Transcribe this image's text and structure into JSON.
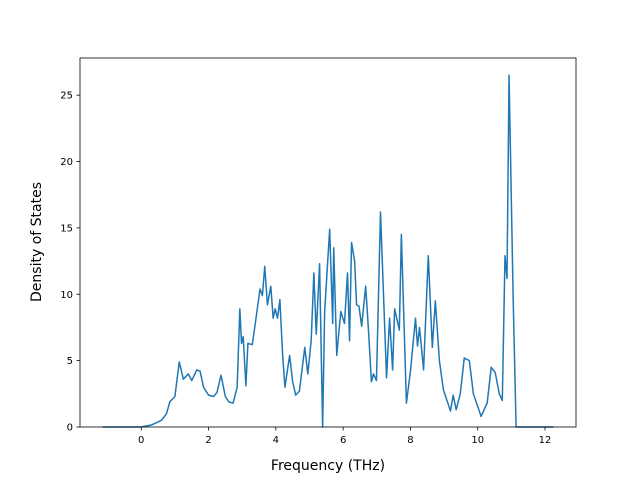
{
  "chart_data": {
    "type": "line",
    "x_label": "Frequency (THz)",
    "y_label": "Density of States",
    "xlim": [
      -1.82,
      12.92
    ],
    "ylim": [
      0,
      27.8
    ],
    "xticks": [
      0,
      2,
      4,
      6,
      8,
      10,
      12
    ],
    "yticks": [
      0,
      5,
      10,
      15,
      20,
      25
    ],
    "series": [
      {
        "color": "#1f77b4",
        "x": [
          -1.15,
          0.0,
          0.3,
          0.6,
          0.75,
          0.85,
          1.0,
          1.13,
          1.25,
          1.4,
          1.5,
          1.65,
          1.75,
          1.85,
          2.0,
          2.15,
          2.25,
          2.37,
          2.5,
          2.6,
          2.73,
          2.85,
          2.93,
          2.98,
          3.03,
          3.11,
          3.17,
          3.3,
          3.4,
          3.53,
          3.6,
          3.67,
          3.75,
          3.85,
          3.92,
          3.98,
          4.05,
          4.12,
          4.2,
          4.27,
          4.41,
          4.5,
          4.59,
          4.7,
          4.86,
          4.95,
          5.05,
          5.13,
          5.2,
          5.3,
          5.39,
          5.45,
          5.6,
          5.69,
          5.72,
          5.81,
          5.93,
          6.04,
          6.13,
          6.19,
          6.25,
          6.34,
          6.4,
          6.47,
          6.55,
          6.67,
          6.76,
          6.84,
          6.9,
          6.99,
          7.11,
          7.29,
          7.38,
          7.47,
          7.53,
          7.67,
          7.73,
          7.88,
          8.0,
          8.15,
          8.21,
          8.27,
          8.39,
          8.53,
          8.65,
          8.74,
          8.86,
          8.98,
          9.19,
          9.27,
          9.36,
          9.48,
          9.6,
          9.75,
          9.87,
          10.1,
          10.28,
          10.4,
          10.52,
          10.64,
          10.73,
          10.81,
          10.87,
          10.93,
          11.05,
          11.14,
          12.25
        ],
        "values": [
          0,
          0,
          0.15,
          0.5,
          1.0,
          1.9,
          2.3,
          4.9,
          3.6,
          4.0,
          3.5,
          4.3,
          4.2,
          3.0,
          2.4,
          2.3,
          2.6,
          3.9,
          2.3,
          1.9,
          1.8,
          3.0,
          8.9,
          6.3,
          6.8,
          3.1,
          6.3,
          6.2,
          8.0,
          10.4,
          9.9,
          12.1,
          9.2,
          10.6,
          8.2,
          8.9,
          8.2,
          9.6,
          5.5,
          3.0,
          5.4,
          3.4,
          2.4,
          2.7,
          6.0,
          4.0,
          6.5,
          11.6,
          7.0,
          12.3,
          0,
          8.7,
          14.9,
          7.8,
          13.5,
          5.4,
          8.7,
          7.8,
          11.6,
          6.5,
          13.9,
          12.5,
          9.2,
          9.1,
          7.6,
          10.6,
          7.0,
          3.4,
          4.0,
          3.5,
          16.2,
          3.7,
          8.2,
          4.3,
          8.9,
          7.3,
          14.5,
          1.8,
          4.2,
          8.2,
          6.1,
          7.5,
          4.3,
          12.9,
          6.0,
          9.5,
          5.0,
          2.8,
          1.2,
          2.4,
          1.3,
          2.5,
          5.2,
          5.0,
          2.5,
          0.8,
          1.8,
          4.5,
          4.1,
          2.5,
          2.0,
          12.9,
          11.2,
          26.5,
          10.0,
          0,
          0
        ]
      }
    ]
  }
}
